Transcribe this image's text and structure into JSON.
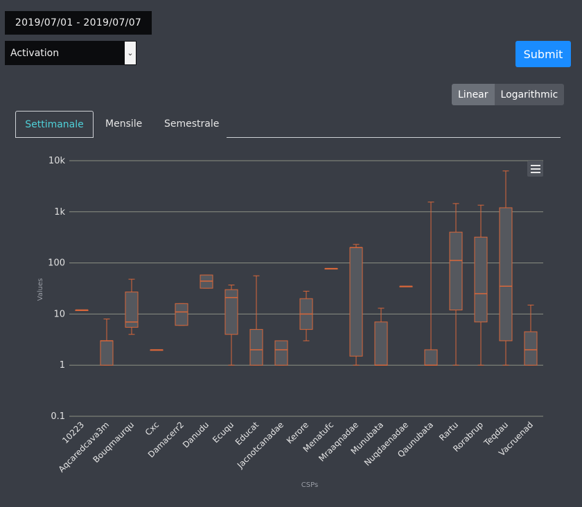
{
  "date_range": "2019/07/01 - 2019/07/07",
  "metric_select": {
    "value": "Activation"
  },
  "submit_label": "Submit",
  "scale_toggle": {
    "linear": "Linear",
    "logarithmic": "Logarithmic",
    "active": "linear"
  },
  "tabs": [
    {
      "label": "Settimanale",
      "active": true
    },
    {
      "label": "Mensile",
      "active": false
    },
    {
      "label": "Semestrale",
      "active": false
    }
  ],
  "colors": {
    "box": "#d9673a",
    "box_fill": "#55585e",
    "grid": "#8d9184",
    "background": "#393d45",
    "accent": "#1a8cff",
    "active_tab": "#4fd1d9"
  },
  "chart_data": {
    "type": "boxplot",
    "title": "",
    "xlabel": "CSPs",
    "ylabel": "Values",
    "yscale": "log",
    "ylim": [
      0.1,
      10000
    ],
    "yticks": [
      {
        "value": 0.1,
        "label": "0.1"
      },
      {
        "value": 1,
        "label": "1"
      },
      {
        "value": 10,
        "label": "10"
      },
      {
        "value": 100,
        "label": "100"
      },
      {
        "value": 1000,
        "label": "1k"
      },
      {
        "value": 10000,
        "label": "10k"
      }
    ],
    "grid": true,
    "categories": [
      "10223",
      "Aqcaredcava3m",
      "Bouqmaurqu",
      "Cxc",
      "Damacerr2",
      "Danudu",
      "Ecuqu",
      "Educat",
      "Jacnotcanadae",
      "Kerore",
      "Menatufc",
      "Mraaqnadae",
      "Munubata",
      "Nuqdaenadae",
      "Qaunubata",
      "Rartu",
      "Rorabrup",
      "Teqdau",
      "Vacruenad"
    ],
    "boxes": [
      {
        "low": 12,
        "q1": 12,
        "median": 12,
        "q3": 12,
        "high": 12
      },
      {
        "low": 1,
        "q1": 1,
        "median": 3,
        "q3": 3,
        "high": 8
      },
      {
        "low": 4,
        "q1": 5.5,
        "median": 7,
        "q3": 27,
        "high": 48
      },
      {
        "low": 2,
        "q1": 2,
        "median": 2,
        "q3": 2,
        "high": 2
      },
      {
        "low": 6,
        "q1": 6,
        "median": 11,
        "q3": 16,
        "high": 16
      },
      {
        "low": 32,
        "q1": 32,
        "median": 44,
        "q3": 58,
        "high": 58
      },
      {
        "low": 1,
        "q1": 4,
        "median": 21,
        "q3": 30,
        "high": 37
      },
      {
        "low": 1,
        "q1": 1,
        "median": 2,
        "q3": 5,
        "high": 56
      },
      {
        "low": 1,
        "q1": 1,
        "median": 2,
        "q3": 3,
        "high": 3
      },
      {
        "low": 3,
        "q1": 5,
        "median": 10,
        "q3": 20,
        "high": 28
      },
      {
        "low": 78,
        "q1": 78,
        "median": 78,
        "q3": 78,
        "high": 78
      },
      {
        "low": 1,
        "q1": 1.5,
        "median": 200,
        "q3": 200,
        "high": 230
      },
      {
        "low": 1,
        "q1": 1,
        "median": 1,
        "q3": 7,
        "high": 13
      },
      {
        "low": 35,
        "q1": 35,
        "median": 35,
        "q3": 35,
        "high": 35
      },
      {
        "low": 1,
        "q1": 1,
        "median": 1,
        "q3": 2,
        "high": 1550
      },
      {
        "low": 1,
        "q1": 12,
        "median": 112,
        "q3": 400,
        "high": 1450
      },
      {
        "low": 1,
        "q1": 7,
        "median": 25,
        "q3": 320,
        "high": 1350
      },
      {
        "low": 1,
        "q1": 3,
        "median": 35,
        "q3": 1200,
        "high": 6300
      },
      {
        "low": 1,
        "q1": 1,
        "median": 2,
        "q3": 4.5,
        "high": 15
      }
    ]
  }
}
